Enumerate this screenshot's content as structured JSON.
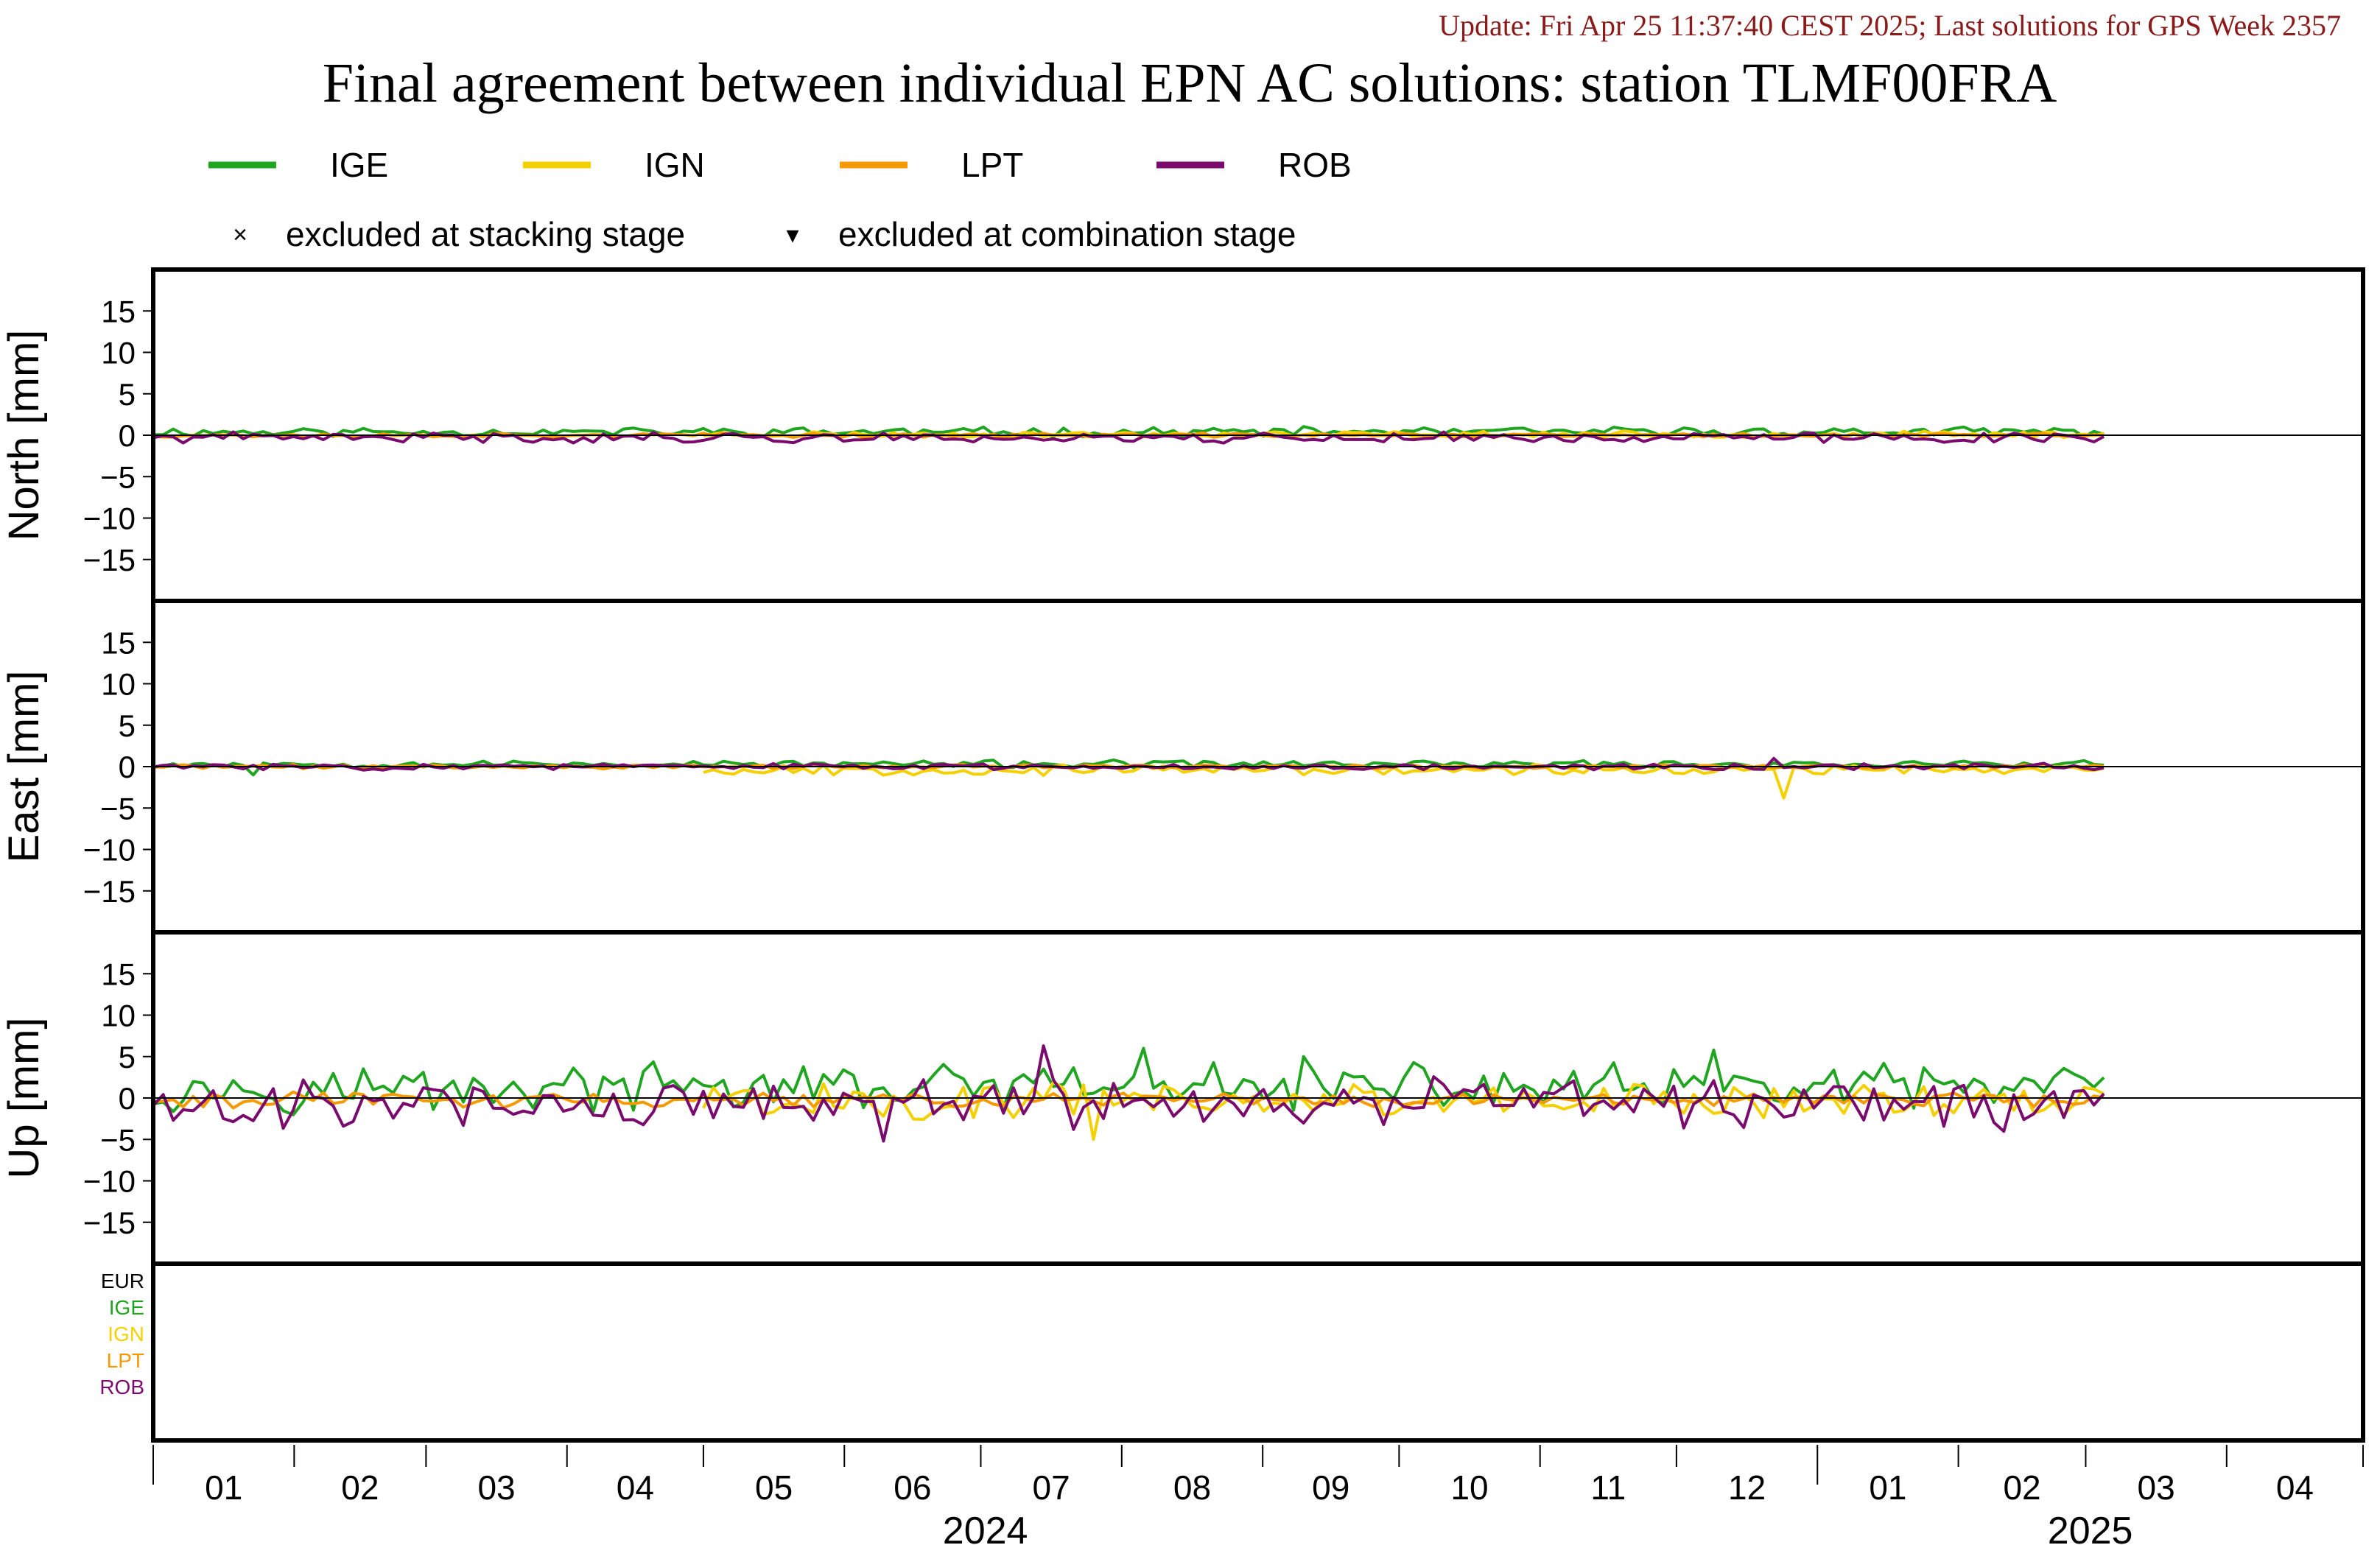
{
  "header": {
    "update_text": "Update: Fri Apr 25 11:37:40 CEST 2025; Last solutions for GPS Week 2357",
    "title": "Final agreement between individual EPN AC solutions: station TLMF00FRA"
  },
  "legend": {
    "series": [
      {
        "name": "IGE",
        "color": "#1fa51f"
      },
      {
        "name": "IGN",
        "color": "#f5d000"
      },
      {
        "name": "LPT",
        "color": "#f59a00"
      },
      {
        "name": "ROB",
        "color": "#7a0a6e"
      }
    ],
    "markers": [
      {
        "symbol": "×",
        "label": "excluded at stacking stage"
      },
      {
        "symbol": "▾",
        "label": "excluded at combination stage"
      }
    ]
  },
  "ac_labels": [
    {
      "name": "EUR",
      "color": "#000000"
    },
    {
      "name": "IGE",
      "color": "#1fa51f"
    },
    {
      "name": "IGN",
      "color": "#f5d000"
    },
    {
      "name": "LPT",
      "color": "#f59a00"
    },
    {
      "name": "ROB",
      "color": "#7a0a6e"
    }
  ],
  "chart_data": {
    "type": "line",
    "x_range": [
      "2024-01-01",
      "2025-05-01"
    ],
    "month_ticks": [
      "01",
      "02",
      "03",
      "04",
      "05",
      "06",
      "07",
      "08",
      "09",
      "10",
      "11",
      "12",
      "01",
      "02",
      "03",
      "04"
    ],
    "year_labels": [
      "2024",
      "2025"
    ],
    "panels": [
      {
        "ylabel": "North [mm]",
        "ylim": [
          -20,
          20
        ],
        "yticks": [
          "15",
          "10",
          "5",
          "0",
          "−5",
          "−10",
          "−15"
        ],
        "series": [
          {
            "name": "IGE",
            "start": "2024-01-01",
            "end": "2025-03-01",
            "mean": 0.4,
            "amp": 0.45,
            "seed": 11
          },
          {
            "name": "IGN",
            "start": "2024-05-01",
            "end": "2025-03-01",
            "mean": 0.1,
            "amp": 0.3,
            "seed": 23
          },
          {
            "name": "LPT",
            "start": "2024-01-01",
            "end": "2025-03-01",
            "mean": 0.0,
            "amp": 0.2,
            "seed": 37
          },
          {
            "name": "ROB",
            "start": "2024-01-01",
            "end": "2025-03-01",
            "mean": -0.3,
            "amp": 0.5,
            "seed": 41
          }
        ]
      },
      {
        "ylabel": "East [mm]",
        "ylim": [
          -20,
          20
        ],
        "yticks": [
          "15",
          "10",
          "5",
          "0",
          "−5",
          "−10",
          "−15"
        ],
        "series": [
          {
            "name": "IGE",
            "start": "2024-01-01",
            "end": "2025-03-01",
            "mean": 0.3,
            "amp": 0.35,
            "seed": 53
          },
          {
            "name": "IGN",
            "start": "2024-05-01",
            "end": "2025-03-01",
            "mean": -0.4,
            "amp": 0.5,
            "seed": 67
          },
          {
            "name": "LPT",
            "start": "2024-01-01",
            "end": "2025-03-01",
            "mean": 0.0,
            "amp": 0.2,
            "seed": 71
          },
          {
            "name": "ROB",
            "start": "2024-01-01",
            "end": "2025-03-01",
            "mean": 0.0,
            "amp": 0.3,
            "seed": 83
          }
        ],
        "spikes": [
          {
            "name": "IGN",
            "date": "2024-12-24",
            "value": -3.8
          },
          {
            "name": "ROB",
            "date": "2024-12-22",
            "value": 1.0
          },
          {
            "name": "IGE",
            "date": "2024-01-24",
            "value": -1.0
          }
        ]
      },
      {
        "ylabel": "Up [mm]",
        "ylim": [
          -20,
          20
        ],
        "yticks": [
          "15",
          "10",
          "5",
          "0",
          "−5",
          "−10",
          "−15"
        ],
        "series": [
          {
            "name": "IGE",
            "start": "2024-01-01",
            "end": "2025-03-01",
            "mean": 1.2,
            "amp": 2.2,
            "seed": 97
          },
          {
            "name": "IGN",
            "start": "2024-05-01",
            "end": "2025-03-01",
            "mean": -0.3,
            "amp": 1.8,
            "seed": 101
          },
          {
            "name": "LPT",
            "start": "2024-01-01",
            "end": "2025-03-01",
            "mean": -0.2,
            "amp": 0.7,
            "seed": 113
          },
          {
            "name": "ROB",
            "start": "2024-01-01",
            "end": "2025-03-01",
            "mean": -0.6,
            "amp": 2.4,
            "seed": 127
          }
        ],
        "spikes": [
          {
            "name": "ROB",
            "date": "2024-07-14",
            "value": 6.3
          },
          {
            "name": "IGE",
            "date": "2024-08-05",
            "value": 6.0
          },
          {
            "name": "IGE",
            "date": "2024-12-10",
            "value": 5.8
          },
          {
            "name": "IGE",
            "date": "2024-09-10",
            "value": 5.0
          },
          {
            "name": "ROB",
            "date": "2024-06-10",
            "value": -5.2
          },
          {
            "name": "IGN",
            "date": "2024-07-25",
            "value": -5.0
          }
        ]
      }
    ],
    "gap_panel": {
      "ylabel": ""
    }
  }
}
